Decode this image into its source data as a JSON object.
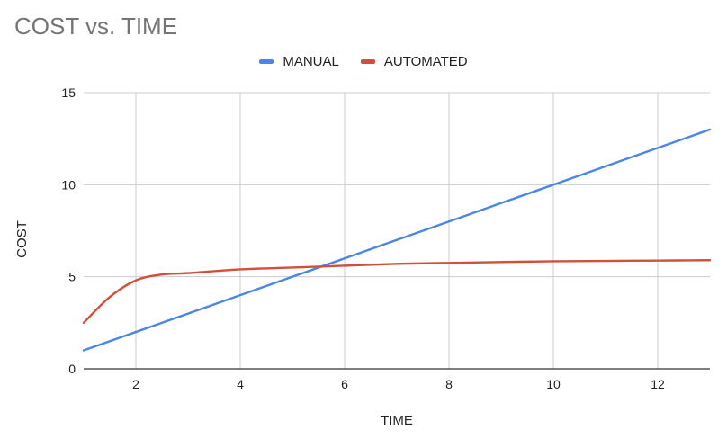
{
  "chart_data": {
    "type": "line",
    "title": "COST vs. TIME",
    "xlabel": "TIME",
    "ylabel": "COST",
    "xlim": [
      1,
      13
    ],
    "ylim": [
      0,
      15
    ],
    "x_ticks": [
      2,
      4,
      6,
      8,
      10,
      12
    ],
    "y_ticks": [
      0,
      5,
      10,
      15
    ],
    "grid": true,
    "legend_position": "top",
    "series": [
      {
        "name": "MANUAL",
        "color": "#4a86e8",
        "x": [
          1,
          2,
          3,
          4,
          5,
          6,
          7,
          8,
          9,
          10,
          11,
          12,
          13
        ],
        "values": [
          1,
          2,
          3,
          4,
          5,
          6,
          7,
          8,
          9,
          10,
          11,
          12,
          13
        ]
      },
      {
        "name": "AUTOMATED",
        "color": "#d1503a",
        "x": [
          1,
          1.5,
          2,
          2.5,
          3,
          4,
          5,
          6,
          7,
          8,
          9,
          10,
          11,
          12,
          13
        ],
        "values": [
          2.5,
          3.9,
          4.8,
          5.12,
          5.2,
          5.4,
          5.5,
          5.6,
          5.7,
          5.75,
          5.8,
          5.84,
          5.86,
          5.88,
          5.9
        ]
      }
    ]
  }
}
